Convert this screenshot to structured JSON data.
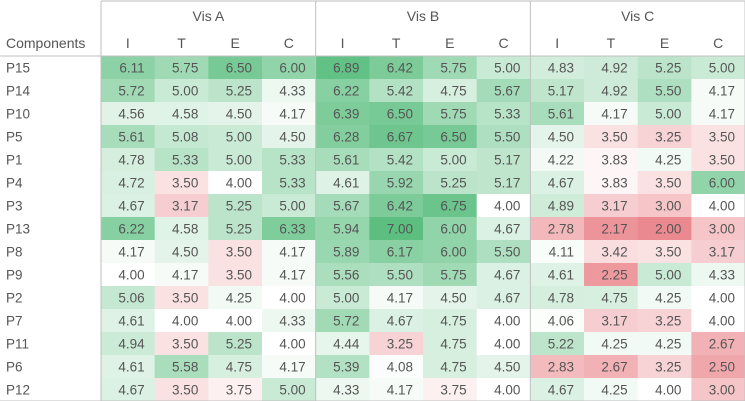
{
  "chart_data": {
    "type": "heatmap",
    "row_header": "Components",
    "groups": [
      {
        "name": "Vis A",
        "columns": [
          "I",
          "T",
          "E",
          "C"
        ]
      },
      {
        "name": "Vis B",
        "columns": [
          "I",
          "T",
          "E",
          "C"
        ]
      },
      {
        "name": "Vis C",
        "columns": [
          "I",
          "T",
          "E",
          "C"
        ]
      }
    ],
    "color_midpoint": 4.0,
    "colors": {
      "high": "#5cbf80",
      "mid": "#ffffff",
      "low": "#ea8a90",
      "border": "#bfbfbf",
      "text": "#555555"
    },
    "rows": [
      {
        "label": "P15",
        "values": [
          6.11,
          5.75,
          6.5,
          6.0,
          6.89,
          6.42,
          5.75,
          5.0,
          4.83,
          4.92,
          5.25,
          5.0
        ]
      },
      {
        "label": "P14",
        "values": [
          5.72,
          5.0,
          5.25,
          4.33,
          6.22,
          5.42,
          4.75,
          5.67,
          5.17,
          4.92,
          5.5,
          4.17
        ]
      },
      {
        "label": "P10",
        "values": [
          4.56,
          4.58,
          4.5,
          4.17,
          6.39,
          6.5,
          5.75,
          5.33,
          5.61,
          4.17,
          5.0,
          4.17
        ]
      },
      {
        "label": "P5",
        "values": [
          5.61,
          5.08,
          5.0,
          4.5,
          6.28,
          6.67,
          6.5,
          5.5,
          4.5,
          3.5,
          3.25,
          3.5
        ]
      },
      {
        "label": "P1",
        "values": [
          4.78,
          5.33,
          5.0,
          5.33,
          5.61,
          5.42,
          5.0,
          5.17,
          4.22,
          3.83,
          4.25,
          3.5
        ]
      },
      {
        "label": "P4",
        "values": [
          4.72,
          3.5,
          4.0,
          5.33,
          4.61,
          5.92,
          5.25,
          5.17,
          4.67,
          3.83,
          3.5,
          6.0
        ]
      },
      {
        "label": "P3",
        "values": [
          4.67,
          3.17,
          5.25,
          5.0,
          5.67,
          6.42,
          6.75,
          4.0,
          4.89,
          3.17,
          3.0,
          4.0
        ]
      },
      {
        "label": "P13",
        "values": [
          6.22,
          4.58,
          5.25,
          6.33,
          5.94,
          7.0,
          6.0,
          4.67,
          2.78,
          2.17,
          2.0,
          3.0
        ]
      },
      {
        "label": "P8",
        "values": [
          4.17,
          4.5,
          3.5,
          4.17,
          5.89,
          6.17,
          6.0,
          5.5,
          4.11,
          3.42,
          3.5,
          3.17
        ]
      },
      {
        "label": "P9",
        "values": [
          4.0,
          4.17,
          3.5,
          4.17,
          5.56,
          5.5,
          5.75,
          4.67,
          4.61,
          2.25,
          5.0,
          4.33
        ]
      },
      {
        "label": "P2",
        "values": [
          5.06,
          3.5,
          4.25,
          4.0,
          5.0,
          4.17,
          4.5,
          4.67,
          4.78,
          4.75,
          4.25,
          4.0
        ]
      },
      {
        "label": "P7",
        "values": [
          4.61,
          4.0,
          4.0,
          4.33,
          5.72,
          4.67,
          4.75,
          4.0,
          4.06,
          3.17,
          3.25,
          4.0
        ]
      },
      {
        "label": "P11",
        "values": [
          4.94,
          3.5,
          5.25,
          4.0,
          4.44,
          3.25,
          4.75,
          4.0,
          5.22,
          4.25,
          4.25,
          2.67
        ]
      },
      {
        "label": "P6",
        "values": [
          4.61,
          5.58,
          4.75,
          4.17,
          5.39,
          4.08,
          4.75,
          4.5,
          2.83,
          2.67,
          3.25,
          2.5
        ]
      },
      {
        "label": "P12",
        "values": [
          4.67,
          3.5,
          3.75,
          5.0,
          4.33,
          4.17,
          3.75,
          4.0,
          4.67,
          4.25,
          4.0,
          3.0
        ]
      }
    ]
  }
}
